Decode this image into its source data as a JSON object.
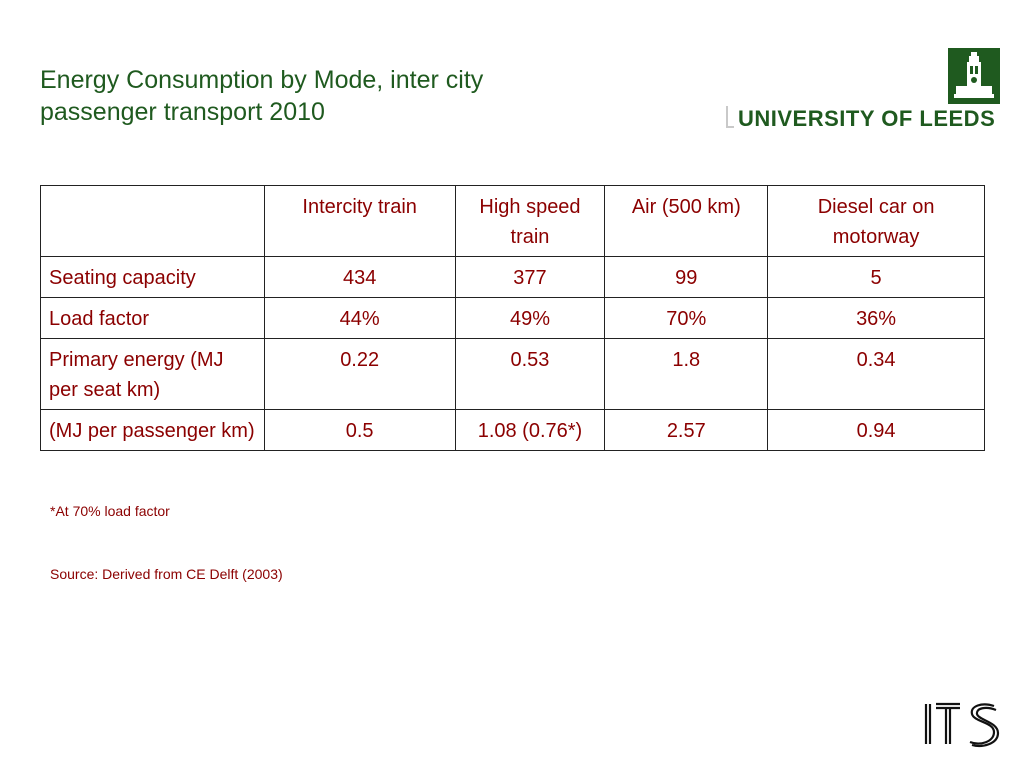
{
  "slide": {
    "title_lines": [
      "Energy Consumption by Mode, inter city",
      "passenger transport 2010"
    ],
    "logo_text": "UNIVERSITY OF LEEDS",
    "footer_logo": "ITS",
    "colors": {
      "title": "#1f5a1f",
      "table_text": "#8b0000",
      "logo_green": "#1f5a1f"
    }
  },
  "table": {
    "headers": [
      "",
      "Intercity train",
      "High speed train",
      "Air (500 km)",
      "Diesel car on motorway"
    ],
    "rows": [
      {
        "label": "Seating capacity",
        "values": [
          "434",
          "377",
          "99",
          "5"
        ]
      },
      {
        "label": "Load factor",
        "values": [
          "44%",
          "49%",
          "70%",
          "36%"
        ]
      },
      {
        "label": "Primary energy (MJ per seat km)",
        "values": [
          "0.22",
          "0.53",
          "1.8",
          "0.34"
        ]
      },
      {
        "label": "(MJ per passenger km)",
        "values": [
          "0.5",
          "1.08 (0.76*)",
          "2.57",
          "0.94"
        ]
      }
    ]
  },
  "notes": {
    "footnote": "*At 70% load factor",
    "source": "Source: Derived from CE Delft (2003)"
  }
}
